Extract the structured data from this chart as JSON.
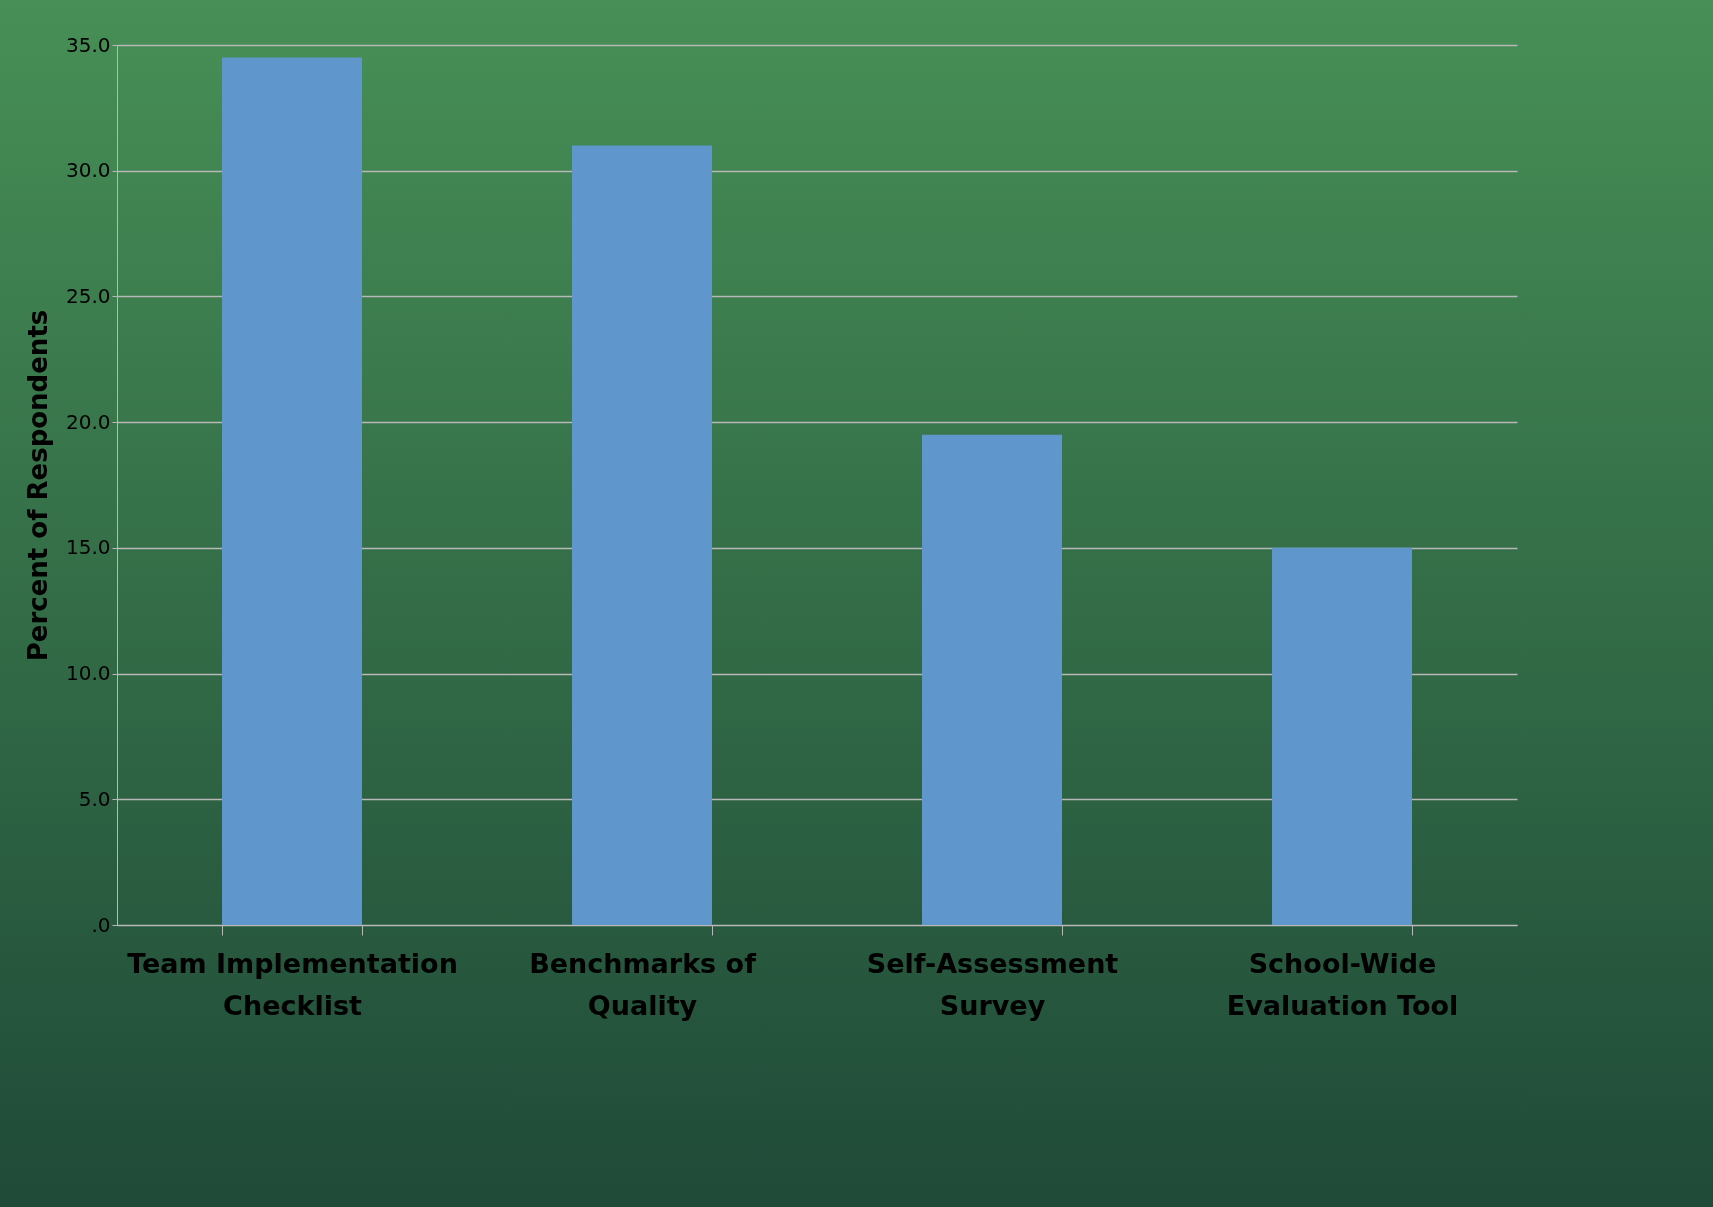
{
  "chart_data": {
    "type": "bar",
    "ylabel": "Percent of Respondents",
    "categories": [
      "Team Implementation Checklist",
      "Benchmarks of Quality",
      "Self-Assessment Survey",
      "School-Wide Evaluation Tool"
    ],
    "values": [
      34.5,
      31.0,
      19.5,
      15.0
    ],
    "color": "#5f97cc",
    "ylim": [
      0,
      35
    ],
    "yticks": [
      {
        "value": 0,
        "label": ".0"
      },
      {
        "value": 5,
        "label": "5.0"
      },
      {
        "value": 10,
        "label": "10.0"
      },
      {
        "value": 15,
        "label": "15.0"
      },
      {
        "value": 20,
        "label": "20.0"
      },
      {
        "value": 25,
        "label": "25.0"
      },
      {
        "value": 30,
        "label": "30.0"
      },
      {
        "value": 35,
        "label": "35.0"
      }
    ],
    "grid": "y"
  }
}
